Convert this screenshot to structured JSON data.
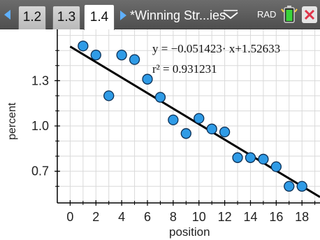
{
  "toolbar": {
    "tabs": [
      "1.2",
      "1.3",
      "1.4"
    ],
    "active_tab": "1.4",
    "document_title": "*Winning Str...ies",
    "angle_mode": "RAD"
  },
  "graph": {
    "equation": "y = −0.051423· x+1.52633",
    "r_squared": "r² = 0.931231"
  },
  "colors": {
    "point_fill": "#2f9be6",
    "point_stroke": "#0b2f55",
    "regression_line": "#000000",
    "grid": "#d9d9d9",
    "accent_nav": "#5fb0ff"
  },
  "chart_data": {
    "type": "scatter",
    "xlabel": "position",
    "ylabel": "percent",
    "xlim": [
      -1,
      19.4
    ],
    "ylim": [
      0.49,
      1.64
    ],
    "x_ticks": [
      0,
      2,
      4,
      6,
      8,
      10,
      12,
      14,
      16,
      18
    ],
    "x_tick_labels": [
      "0",
      "2",
      "4",
      "6",
      "8",
      "10",
      "12",
      "14",
      "16",
      "18"
    ],
    "y_ticks": [
      0.7,
      1.0,
      1.3
    ],
    "y_tick_labels": [
      "0.7",
      "1.0",
      "1.3"
    ],
    "grid": true,
    "points": [
      {
        "x": 1,
        "y": 1.53
      },
      {
        "x": 2,
        "y": 1.47
      },
      {
        "x": 3,
        "y": 1.2
      },
      {
        "x": 4,
        "y": 1.47
      },
      {
        "x": 5,
        "y": 1.44
      },
      {
        "x": 6,
        "y": 1.31
      },
      {
        "x": 7,
        "y": 1.19
      },
      {
        "x": 8,
        "y": 1.04
      },
      {
        "x": 9,
        "y": 0.95
      },
      {
        "x": 10,
        "y": 1.05
      },
      {
        "x": 11,
        "y": 0.98
      },
      {
        "x": 12,
        "y": 0.96
      },
      {
        "x": 13,
        "y": 0.79
      },
      {
        "x": 14,
        "y": 0.79
      },
      {
        "x": 15,
        "y": 0.78
      },
      {
        "x": 16,
        "y": 0.73
      },
      {
        "x": 17,
        "y": 0.6
      },
      {
        "x": 18,
        "y": 0.6
      }
    ],
    "regression": {
      "slope": -0.051423,
      "intercept": 1.52633
    }
  }
}
